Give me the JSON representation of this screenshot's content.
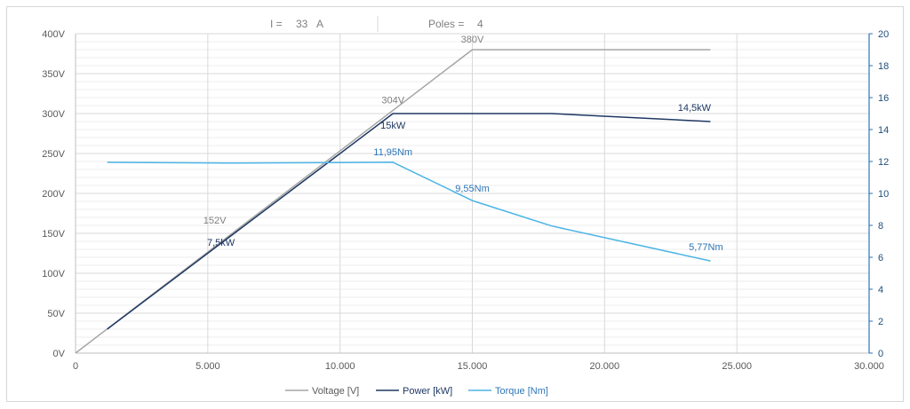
{
  "header": {
    "current_label": "I =",
    "current_value": "33",
    "current_unit": "A",
    "poles_label": "Poles =",
    "poles_value": "4"
  },
  "colors": {
    "voltage": "#a6a6a6",
    "power": "#1f3864",
    "torque": "#4bb4e6",
    "grid_major": "#d9d9d9",
    "grid_minor": "#eeeeee",
    "right_axis": "#2e75b6"
  },
  "chart_data": {
    "type": "line",
    "x_ticks": [
      "0",
      "5.000",
      "10.000",
      "15.000",
      "20.000",
      "25.000",
      "30.000"
    ],
    "xlim": [
      0,
      30000
    ],
    "y_left_ticks": [
      "0V",
      "50V",
      "100V",
      "150V",
      "200V",
      "250V",
      "300V",
      "350V",
      "400V"
    ],
    "ylim_left": [
      0,
      400
    ],
    "y_right_ticks": [
      "0",
      "2",
      "4",
      "6",
      "8",
      "10",
      "12",
      "14",
      "16",
      "18",
      "20"
    ],
    "ylim_right": [
      0,
      20
    ],
    "grid": true,
    "legend_position": "bottom",
    "series": [
      {
        "name": "Voltage [V]",
        "axis": "left",
        "points": [
          [
            0,
            0
          ],
          [
            15000,
            380
          ],
          [
            24000,
            380
          ]
        ]
      },
      {
        "name": "Power [kW]",
        "axis": "right",
        "points": [
          [
            1200,
            1.5
          ],
          [
            12000,
            15
          ],
          [
            18000,
            15
          ],
          [
            24000,
            14.5
          ]
        ]
      },
      {
        "name": "Torque [Nm]",
        "axis": "right",
        "points": [
          [
            1200,
            11.95
          ],
          [
            6000,
            11.9
          ],
          [
            12000,
            11.95
          ],
          [
            15000,
            9.55
          ],
          [
            18000,
            7.96
          ],
          [
            24000,
            5.77
          ]
        ]
      }
    ],
    "annotations": [
      {
        "text": "380V",
        "series": "voltage",
        "x": 15000,
        "y": 380,
        "axis": "left"
      },
      {
        "text": "304V",
        "series": "voltage",
        "x": 12000,
        "y": 304,
        "axis": "left"
      },
      {
        "text": "152V",
        "series": "voltage",
        "x": 6000,
        "y": 152,
        "axis": "left"
      },
      {
        "text": "15kW",
        "series": "power",
        "x": 12000,
        "y": 15,
        "axis": "right"
      },
      {
        "text": "7,5kW",
        "series": "power",
        "x": 6000,
        "y": 7.5,
        "axis": "right"
      },
      {
        "text": "14,5kW",
        "series": "power",
        "x": 24000,
        "y": 14.5,
        "axis": "right"
      },
      {
        "text": "11,95Nm",
        "series": "torque",
        "x": 12000,
        "y": 11.95,
        "axis": "right"
      },
      {
        "text": "9,55Nm",
        "series": "torque",
        "x": 15000,
        "y": 9.55,
        "axis": "right"
      },
      {
        "text": "5,77Nm",
        "series": "torque",
        "x": 24000,
        "y": 5.77,
        "axis": "right"
      }
    ]
  }
}
